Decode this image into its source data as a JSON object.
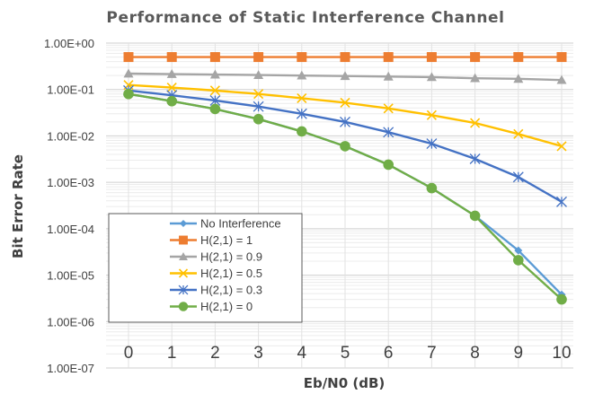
{
  "chart_data": {
    "type": "line",
    "title": "Performance of Static Interference Channel",
    "xlabel": "Eb/N0 (dB)",
    "ylabel": "Bit Error Rate",
    "y_scale": "log",
    "ylim": [
      1e-07,
      1
    ],
    "xlim": [
      0,
      10
    ],
    "x": [
      0,
      1,
      2,
      3,
      4,
      5,
      6,
      7,
      8,
      9,
      10
    ],
    "x_tick_labels": [
      "0",
      "1",
      "2",
      "3",
      "4",
      "5",
      "6",
      "7",
      "8",
      "9",
      "10"
    ],
    "y_tick_labels": [
      "1.00E+00",
      "1.00E-01",
      "1.00E-02",
      "1.00E-03",
      "1.00E-04",
      "1.00E-05",
      "1.00E-06",
      "1.00E-07"
    ],
    "grid": true,
    "legend_position": "bottom-left",
    "series": [
      {
        "name": "No Interference",
        "color": "#5B9BD5",
        "marker": "diamond",
        "values": [
          0.08,
          0.056,
          0.038,
          0.023,
          0.0125,
          0.006,
          0.0024,
          0.00075,
          0.00019,
          3.4e-05,
          3.8e-06
        ]
      },
      {
        "name": "H(2,1) = 1",
        "color": "#ED7D31",
        "marker": "square",
        "values": [
          0.5,
          0.5,
          0.5,
          0.5,
          0.5,
          0.5,
          0.5,
          0.5,
          0.5,
          0.5,
          0.5
        ]
      },
      {
        "name": "H(2,1) = 0.9",
        "color": "#A5A5A5",
        "marker": "triangle",
        "values": [
          0.22,
          0.215,
          0.21,
          0.205,
          0.2,
          0.195,
          0.19,
          0.185,
          0.175,
          0.17,
          0.16
        ]
      },
      {
        "name": "H(2,1) = 0.5",
        "color": "#FFC000",
        "marker": "x",
        "values": [
          0.125,
          0.11,
          0.095,
          0.08,
          0.065,
          0.052,
          0.039,
          0.028,
          0.019,
          0.011,
          0.006
        ]
      },
      {
        "name": "H(2,1) = 0.3",
        "color": "#4472C4",
        "marker": "star",
        "values": [
          0.095,
          0.075,
          0.058,
          0.043,
          0.03,
          0.02,
          0.012,
          0.0068,
          0.0032,
          0.0013,
          0.00038
        ]
      },
      {
        "name": "H(2,1) = 0",
        "color": "#70AD47",
        "marker": "circle",
        "values": [
          0.08,
          0.056,
          0.038,
          0.023,
          0.0125,
          0.006,
          0.0024,
          0.00075,
          0.00019,
          2.1e-05,
          3e-06
        ]
      }
    ]
  }
}
